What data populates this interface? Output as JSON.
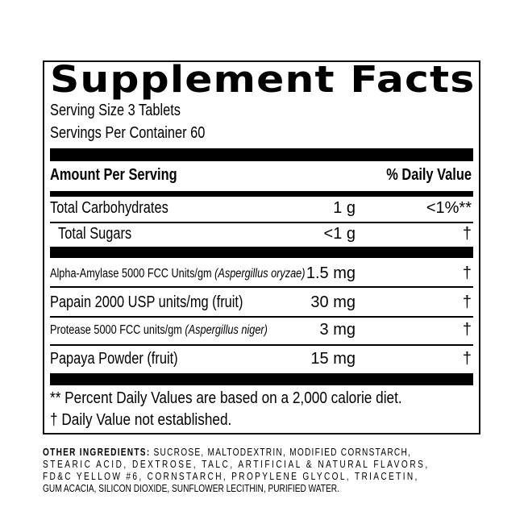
{
  "title": "Supplement Facts",
  "serving_size": "Serving Size 3 Tablets",
  "servings_per_container": "Servings Per Container 60",
  "header": {
    "amount": "Amount Per Serving",
    "dv": "% Daily Value"
  },
  "rows": [
    {
      "name": "Total Carbohydrates",
      "amount": "1 g",
      "dv": "<1%**"
    },
    {
      "name": "Total Sugars",
      "amount": "<1 g",
      "dv": "†"
    },
    {
      "name": "Alpha-Amylase 5000 FCC Units/gm",
      "source": "(Aspergillus oryzae)",
      "amount": "1.5 mg",
      "dv": "†"
    },
    {
      "name": "Papain 2000 USP units/mg (fruit)",
      "amount": "30 mg",
      "dv": "†"
    },
    {
      "name": "Protease 5000 FCC units/gm",
      "source": "(Aspergillus niger)",
      "amount": "3 mg",
      "dv": "†"
    },
    {
      "name": "Papaya Powder (fruit)",
      "amount": "15 mg",
      "dv": "†"
    }
  ],
  "footnotes": [
    "** Percent Daily Values are based on a 2,000 calorie diet.",
    "† Daily Value not established."
  ],
  "other_ingredients": {
    "label": "OTHER INGREDIENTS:",
    "lines": [
      " SUCROSE, MALTODEXTRIN, MODIFIED CORNSTARCH,",
      "STEARIC ACID, DEXTROSE, TALC, ARTIFICIAL & NATURAL FLAVORS,",
      "FD&C YELLOW #6, CORNSTARCH, PROPYLENE GLYCOL, TRIACETIN,",
      "GUM ACACIA, SILICON DIOXIDE, SUNFLOWER LECITHIN, PURIFIED WATER."
    ]
  }
}
